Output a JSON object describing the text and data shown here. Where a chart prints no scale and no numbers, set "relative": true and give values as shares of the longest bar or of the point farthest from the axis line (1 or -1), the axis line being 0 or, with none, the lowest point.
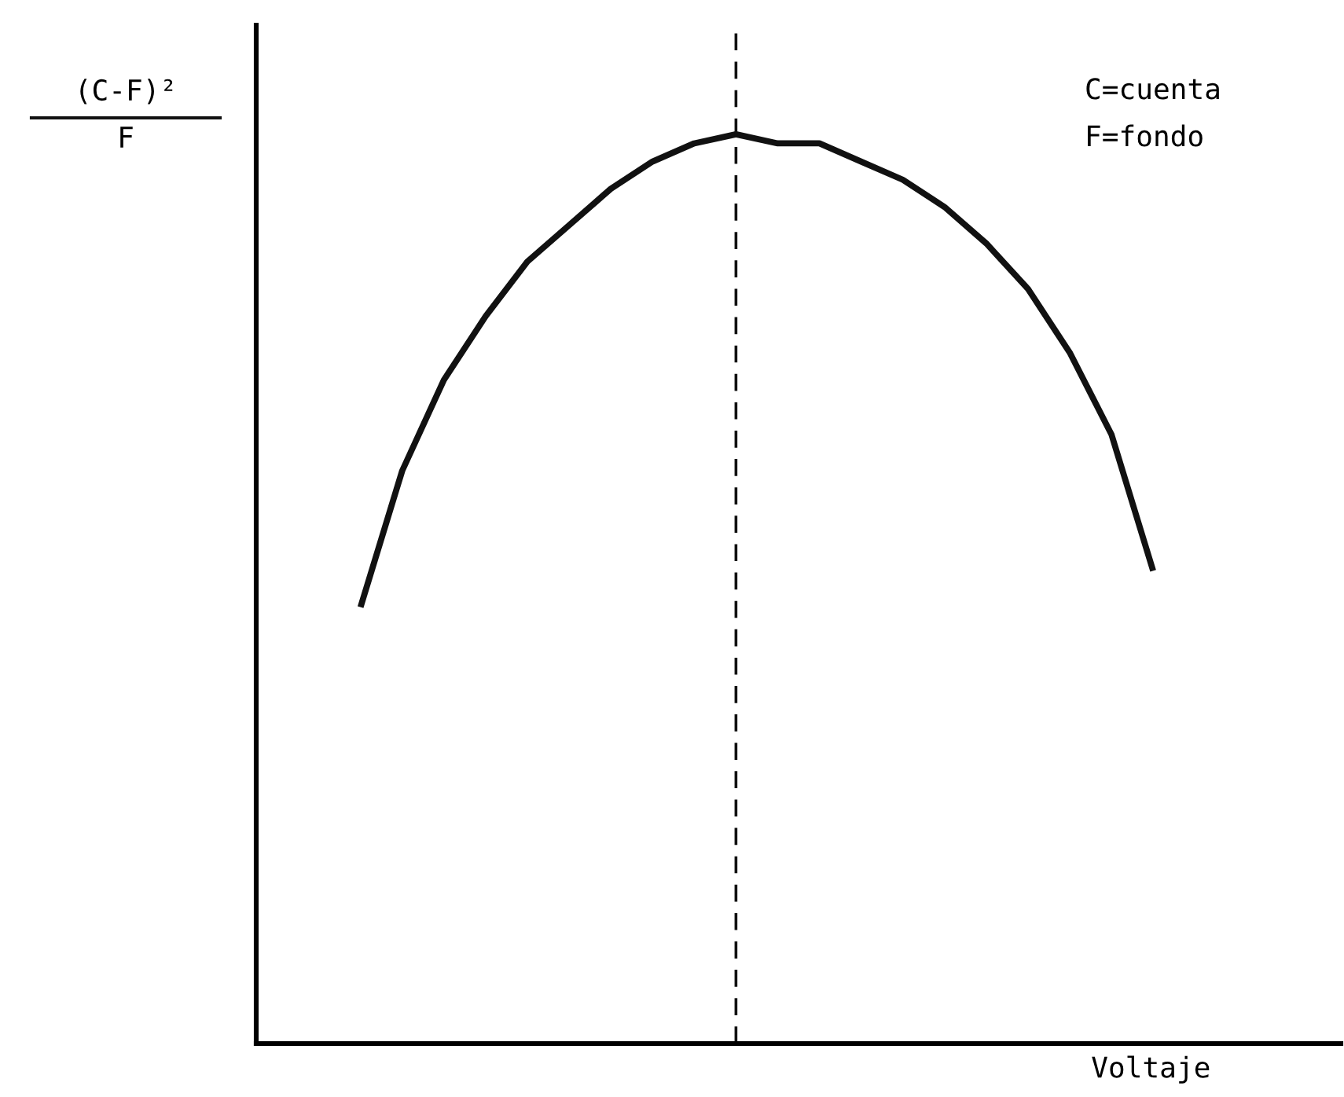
{
  "chart_data": {
    "type": "line",
    "relative": true,
    "xlabel": "Voltaje",
    "ylabel": "(C-F)²\nF",
    "annotations": [
      "C=cuenta",
      "F=fondo"
    ],
    "categories": [
      null,
      null,
      null,
      null,
      null,
      null,
      null,
      null,
      null,
      null,
      null,
      null,
      null,
      null,
      null,
      null,
      null,
      null,
      null,
      null,
      null,
      null,
      null,
      null,
      null,
      null
    ],
    "series": [
      {
        "color": "#111111",
        "values": [
          null,
          null,
          0.48,
          0.63,
          0.73,
          0.8,
          0.86,
          0.9,
          0.94,
          0.97,
          0.99,
          1.0,
          0.99,
          0.99,
          0.97,
          0.95,
          0.92,
          0.88,
          0.83,
          0.76,
          0.67,
          0.52,
          null,
          null,
          null,
          null
        ]
      }
    ],
    "grid": false,
    "legend": false,
    "marker": "none",
    "line_style": "solid"
  }
}
